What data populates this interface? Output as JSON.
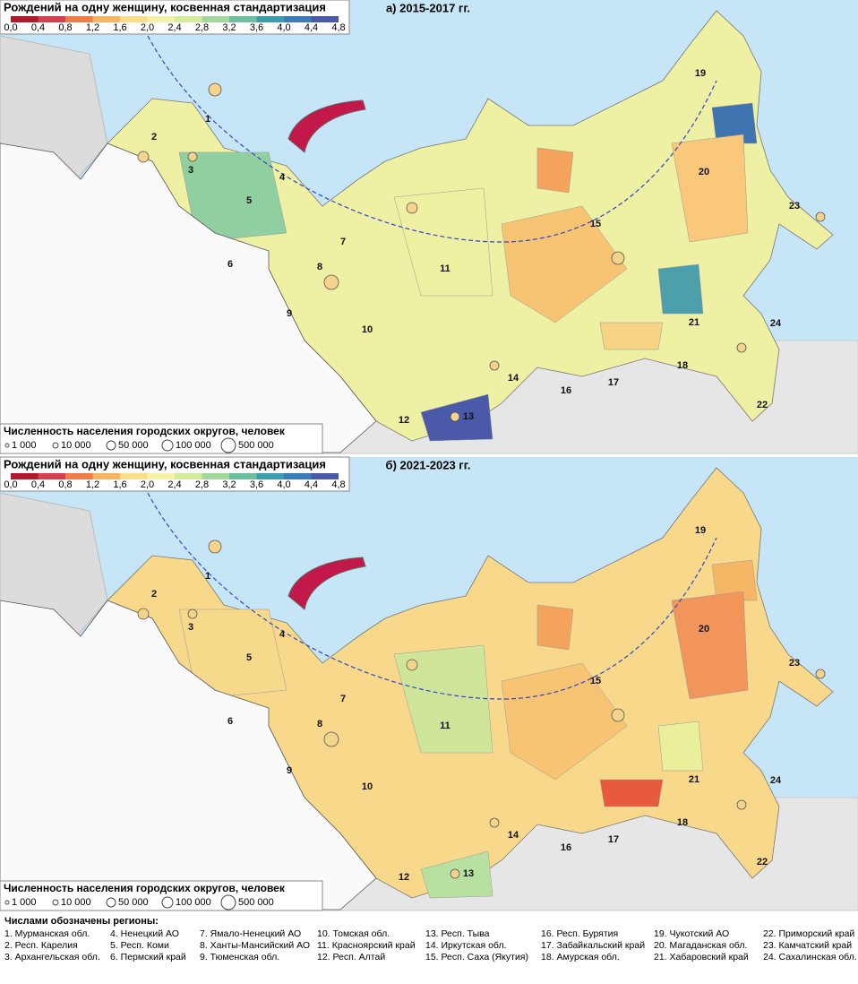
{
  "panels": [
    {
      "title": "а) 2015-2017 гг.",
      "color_legend": {
        "title": "Рождений на одну женщину, косвенная стандартизация",
        "ticks": [
          "0,0",
          "0,4",
          "0,8",
          "1,2",
          "1,6",
          "2,0",
          "2,4",
          "2,8",
          "3,2",
          "3,6",
          "4,0",
          "4,4",
          "4,8"
        ]
      },
      "size_legend": {
        "title": "Численность населения городских округов, человек",
        "items": [
          "1 000",
          "10 000",
          "50 000",
          "100 000",
          "500 000"
        ]
      },
      "region_labels": [
        "1",
        "2",
        "3",
        "4",
        "5",
        "6",
        "7",
        "8",
        "9",
        "10",
        "11",
        "12",
        "13",
        "14",
        "15",
        "16",
        "17",
        "18",
        "19",
        "20",
        "21",
        "22",
        "23",
        "24"
      ]
    },
    {
      "title": "б) 2021-2023 гг.",
      "color_legend": {
        "title": "Рождений на одну женщину, косвенная стандартизация",
        "ticks": [
          "0,0",
          "0,4",
          "0,8",
          "1,2",
          "1,6",
          "2,0",
          "2,4",
          "2,8",
          "3,2",
          "3,6",
          "4,0",
          "4,4",
          "4,8"
        ]
      },
      "size_legend": {
        "title": "Численность населения городских округов, человек",
        "items": [
          "1 000",
          "10 000",
          "50 000",
          "100 000",
          "500 000"
        ]
      },
      "region_labels": [
        "1",
        "2",
        "3",
        "4",
        "5",
        "6",
        "7",
        "8",
        "9",
        "10",
        "11",
        "12",
        "13",
        "14",
        "15",
        "16",
        "17",
        "18",
        "19",
        "20",
        "21",
        "22",
        "23",
        "24"
      ]
    }
  ],
  "regions_legend": {
    "title": "Числами обозначены регионы:",
    "items": [
      "1. Мурманская обл.",
      "2. Респ. Карелия",
      "3. Архангельская обл.",
      "4. Ненецкий АО",
      "5. Респ. Коми",
      "6. Пермский край",
      "7. Ямало-Ненецкий АО",
      "8. Ханты-Мансийский АО",
      "9. Тюменская обл.",
      "10. Томская обл.",
      "11. Красноярский край",
      "12. Респ. Алтай",
      "13. Респ. Тыва",
      "14. Иркутская обл.",
      "15. Респ. Саха (Якутия)",
      "16. Респ. Бурятия",
      "17. Забайкальский край",
      "18. Амурская обл.",
      "19. Чукотский АО",
      "20. Магаданская обл.",
      "21. Хабаровский край",
      "22. Приморский край",
      "23. Камчатский край",
      "24. Сахалинская обл."
    ]
  }
}
